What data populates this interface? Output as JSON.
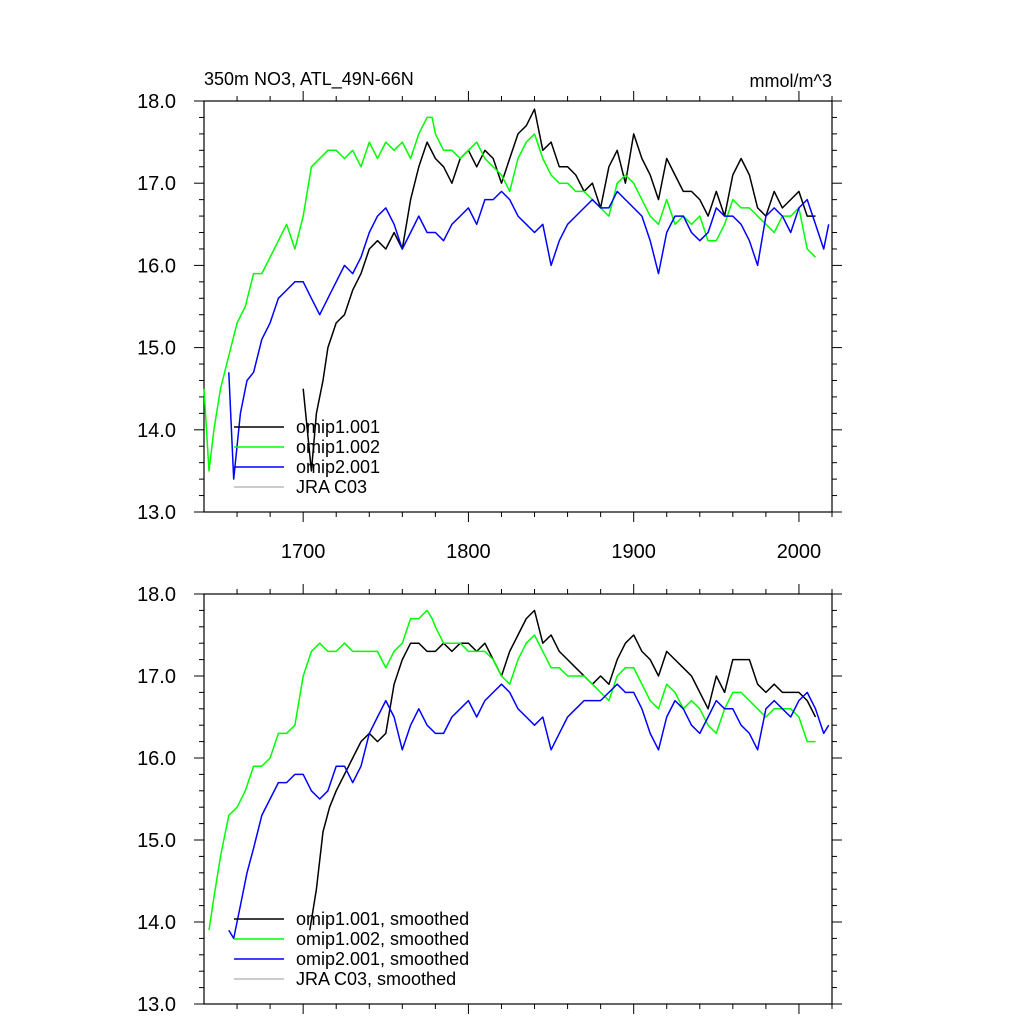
{
  "chart_data": [
    {
      "type": "line",
      "title": "350m NO3, ATL_49N-66N",
      "units": "mmol/m^3",
      "xlim": [
        1640,
        2020
      ],
      "ylim": [
        13.0,
        18.0
      ],
      "x_ticks": [
        1700,
        1800,
        1900,
        2000
      ],
      "y_ticks": [
        13.0,
        14.0,
        15.0,
        16.0,
        17.0,
        18.0
      ],
      "grid": false,
      "legend": "bottom-left",
      "series": [
        {
          "name": "omip1.001",
          "color": "#000000",
          "x": [
            1700,
            1705,
            1708,
            1712,
            1715,
            1720,
            1725,
            1730,
            1735,
            1740,
            1745,
            1750,
            1755,
            1760,
            1765,
            1770,
            1775,
            1780,
            1785,
            1790,
            1795,
            1800,
            1805,
            1810,
            1815,
            1820,
            1825,
            1830,
            1835,
            1840,
            1845,
            1850,
            1855,
            1860,
            1865,
            1870,
            1875,
            1880,
            1885,
            1890,
            1895,
            1900,
            1905,
            1910,
            1915,
            1920,
            1925,
            1930,
            1935,
            1940,
            1945,
            1950,
            1955,
            1960,
            1965,
            1970,
            1975,
            1980,
            1985,
            1990,
            1995,
            2000,
            2005,
            2010
          ],
          "y": [
            14.5,
            13.5,
            14.2,
            14.6,
            15.0,
            15.3,
            15.4,
            15.7,
            15.9,
            16.2,
            16.3,
            16.2,
            16.4,
            16.2,
            16.8,
            17.2,
            17.5,
            17.3,
            17.2,
            17.0,
            17.3,
            17.4,
            17.2,
            17.4,
            17.3,
            17.0,
            17.3,
            17.6,
            17.7,
            17.9,
            17.4,
            17.5,
            17.2,
            17.2,
            17.1,
            16.9,
            17.0,
            16.7,
            17.2,
            17.4,
            17.0,
            17.6,
            17.3,
            17.1,
            16.8,
            17.3,
            17.1,
            16.9,
            16.9,
            16.8,
            16.6,
            16.9,
            16.6,
            17.1,
            17.3,
            17.1,
            16.7,
            16.6,
            16.9,
            16.7,
            16.8,
            16.9,
            16.6,
            16.6
          ]
        },
        {
          "name": "omip1.002",
          "color": "#00ff00",
          "x": [
            1640,
            1643,
            1646,
            1650,
            1655,
            1660,
            1665,
            1670,
            1675,
            1680,
            1685,
            1690,
            1695,
            1700,
            1705,
            1710,
            1715,
            1720,
            1725,
            1730,
            1735,
            1740,
            1745,
            1750,
            1755,
            1760,
            1765,
            1770,
            1775,
            1778,
            1780,
            1785,
            1790,
            1795,
            1800,
            1805,
            1810,
            1815,
            1820,
            1825,
            1830,
            1835,
            1840,
            1845,
            1850,
            1855,
            1860,
            1865,
            1870,
            1875,
            1880,
            1885,
            1890,
            1895,
            1900,
            1905,
            1910,
            1915,
            1920,
            1925,
            1930,
            1935,
            1940,
            1945,
            1950,
            1955,
            1960,
            1965,
            1970,
            1975,
            1980,
            1985,
            1990,
            1995,
            2000,
            2005,
            2010
          ],
          "y": [
            14.5,
            13.5,
            14.0,
            14.5,
            14.9,
            15.3,
            15.5,
            15.9,
            15.9,
            16.1,
            16.3,
            16.5,
            16.2,
            16.6,
            17.2,
            17.3,
            17.4,
            17.4,
            17.3,
            17.4,
            17.2,
            17.5,
            17.3,
            17.5,
            17.4,
            17.5,
            17.3,
            17.6,
            17.8,
            17.8,
            17.6,
            17.4,
            17.4,
            17.3,
            17.4,
            17.5,
            17.3,
            17.2,
            17.1,
            16.9,
            17.3,
            17.5,
            17.6,
            17.3,
            17.1,
            17.0,
            17.0,
            16.9,
            16.9,
            16.8,
            16.7,
            16.6,
            17.0,
            17.1,
            17.0,
            16.8,
            16.6,
            16.5,
            16.8,
            16.5,
            16.6,
            16.5,
            16.6,
            16.3,
            16.3,
            16.5,
            16.8,
            16.7,
            16.7,
            16.6,
            16.5,
            16.4,
            16.6,
            16.6,
            16.7,
            16.2,
            16.1
          ]
        },
        {
          "name": "omip2.001",
          "color": "#0000ff",
          "x": [
            1655,
            1658,
            1662,
            1666,
            1670,
            1675,
            1680,
            1685,
            1690,
            1695,
            1700,
            1705,
            1710,
            1715,
            1720,
            1725,
            1730,
            1735,
            1740,
            1745,
            1750,
            1755,
            1760,
            1765,
            1770,
            1775,
            1780,
            1785,
            1790,
            1795,
            1800,
            1805,
            1810,
            1815,
            1820,
            1825,
            1830,
            1835,
            1840,
            1845,
            1850,
            1855,
            1860,
            1865,
            1870,
            1875,
            1880,
            1885,
            1890,
            1895,
            1900,
            1905,
            1910,
            1915,
            1920,
            1925,
            1930,
            1935,
            1940,
            1945,
            1950,
            1955,
            1960,
            1965,
            1970,
            1975,
            1980,
            1985,
            1990,
            1995,
            2000,
            2005,
            2010,
            2015,
            2018
          ],
          "y": [
            14.7,
            13.4,
            14.2,
            14.6,
            14.7,
            15.1,
            15.3,
            15.6,
            15.7,
            15.8,
            15.8,
            15.6,
            15.4,
            15.6,
            15.8,
            16.0,
            15.9,
            16.1,
            16.4,
            16.6,
            16.7,
            16.5,
            16.2,
            16.4,
            16.6,
            16.4,
            16.4,
            16.3,
            16.5,
            16.6,
            16.7,
            16.5,
            16.8,
            16.8,
            16.9,
            16.8,
            16.6,
            16.5,
            16.4,
            16.5,
            16.0,
            16.3,
            16.5,
            16.6,
            16.7,
            16.8,
            16.7,
            16.7,
            16.9,
            16.8,
            16.7,
            16.6,
            16.3,
            15.9,
            16.4,
            16.6,
            16.6,
            16.4,
            16.3,
            16.4,
            16.7,
            16.6,
            16.6,
            16.5,
            16.3,
            16.0,
            16.6,
            16.7,
            16.6,
            16.4,
            16.7,
            16.8,
            16.5,
            16.2,
            16.5
          ]
        },
        {
          "name": "JRA C03",
          "color": "#bbbbbb",
          "x": [],
          "y": []
        }
      ]
    },
    {
      "type": "line",
      "xlim": [
        1640,
        2020
      ],
      "ylim": [
        13.0,
        18.0
      ],
      "y_ticks": [
        13.0,
        14.0,
        15.0,
        16.0,
        17.0,
        18.0
      ],
      "grid": false,
      "legend": "bottom-left",
      "series": [
        {
          "name": "omip1.001, smoothed",
          "color": "#000000",
          "x": [
            1704,
            1708,
            1712,
            1716,
            1720,
            1725,
            1730,
            1735,
            1740,
            1745,
            1750,
            1755,
            1760,
            1765,
            1770,
            1775,
            1780,
            1785,
            1790,
            1795,
            1800,
            1805,
            1810,
            1815,
            1820,
            1825,
            1830,
            1835,
            1840,
            1845,
            1850,
            1855,
            1860,
            1865,
            1870,
            1875,
            1880,
            1885,
            1890,
            1895,
            1900,
            1905,
            1910,
            1915,
            1920,
            1925,
            1930,
            1935,
            1940,
            1945,
            1950,
            1955,
            1960,
            1965,
            1970,
            1975,
            1980,
            1985,
            1990,
            1995,
            2000,
            2005,
            2010
          ],
          "y": [
            13.9,
            14.4,
            15.1,
            15.4,
            15.6,
            15.8,
            16.0,
            16.2,
            16.3,
            16.2,
            16.3,
            16.9,
            17.2,
            17.4,
            17.4,
            17.3,
            17.3,
            17.4,
            17.3,
            17.4,
            17.4,
            17.3,
            17.4,
            17.2,
            17.0,
            17.3,
            17.5,
            17.7,
            17.8,
            17.4,
            17.5,
            17.3,
            17.2,
            17.1,
            17.0,
            16.9,
            17.0,
            16.9,
            17.2,
            17.4,
            17.5,
            17.3,
            17.2,
            17.0,
            17.3,
            17.2,
            17.1,
            17.0,
            16.8,
            16.6,
            17.0,
            16.8,
            17.2,
            17.2,
            17.2,
            16.9,
            16.8,
            16.9,
            16.8,
            16.8,
            16.8,
            16.7,
            16.5
          ]
        },
        {
          "name": "omip1.002, smoothed",
          "color": "#00ff00",
          "x": [
            1643,
            1646,
            1650,
            1655,
            1660,
            1665,
            1670,
            1675,
            1680,
            1685,
            1690,
            1695,
            1700,
            1705,
            1710,
            1715,
            1720,
            1725,
            1730,
            1735,
            1740,
            1745,
            1750,
            1755,
            1760,
            1765,
            1770,
            1775,
            1778,
            1780,
            1785,
            1790,
            1795,
            1800,
            1805,
            1810,
            1815,
            1820,
            1825,
            1830,
            1835,
            1840,
            1845,
            1850,
            1855,
            1860,
            1865,
            1870,
            1875,
            1880,
            1885,
            1890,
            1895,
            1900,
            1905,
            1910,
            1915,
            1920,
            1925,
            1930,
            1935,
            1940,
            1945,
            1950,
            1955,
            1960,
            1965,
            1970,
            1975,
            1980,
            1985,
            1990,
            1995,
            2000,
            2005,
            2010
          ],
          "y": [
            13.9,
            14.3,
            14.8,
            15.3,
            15.4,
            15.6,
            15.9,
            15.9,
            16.0,
            16.3,
            16.3,
            16.4,
            17.0,
            17.3,
            17.4,
            17.3,
            17.3,
            17.4,
            17.3,
            17.3,
            17.3,
            17.3,
            17.1,
            17.3,
            17.4,
            17.7,
            17.7,
            17.8,
            17.7,
            17.6,
            17.4,
            17.4,
            17.4,
            17.3,
            17.3,
            17.3,
            17.2,
            17.0,
            16.9,
            17.2,
            17.4,
            17.5,
            17.3,
            17.1,
            17.1,
            17.0,
            17.0,
            17.0,
            16.9,
            16.8,
            16.7,
            17.0,
            17.1,
            17.1,
            16.9,
            16.7,
            16.6,
            16.9,
            16.8,
            16.6,
            16.7,
            16.6,
            16.4,
            16.3,
            16.6,
            16.8,
            16.8,
            16.7,
            16.6,
            16.5,
            16.6,
            16.6,
            16.6,
            16.5,
            16.2,
            16.2
          ]
        },
        {
          "name": "omip2.001, smoothed",
          "color": "#0000ff",
          "x": [
            1655,
            1658,
            1662,
            1666,
            1670,
            1675,
            1680,
            1685,
            1690,
            1695,
            1700,
            1705,
            1710,
            1715,
            1720,
            1725,
            1730,
            1735,
            1740,
            1745,
            1750,
            1755,
            1760,
            1765,
            1770,
            1775,
            1780,
            1785,
            1790,
            1795,
            1800,
            1805,
            1810,
            1815,
            1820,
            1825,
            1830,
            1835,
            1840,
            1845,
            1850,
            1855,
            1860,
            1865,
            1870,
            1875,
            1880,
            1885,
            1890,
            1895,
            1900,
            1905,
            1910,
            1915,
            1920,
            1925,
            1930,
            1935,
            1940,
            1945,
            1950,
            1955,
            1960,
            1965,
            1970,
            1975,
            1980,
            1985,
            1990,
            1995,
            2000,
            2005,
            2010,
            2015,
            2018
          ],
          "y": [
            13.9,
            13.8,
            14.2,
            14.6,
            14.9,
            15.3,
            15.5,
            15.7,
            15.7,
            15.8,
            15.8,
            15.6,
            15.5,
            15.6,
            15.9,
            15.9,
            15.7,
            15.9,
            16.3,
            16.5,
            16.7,
            16.5,
            16.1,
            16.4,
            16.6,
            16.4,
            16.3,
            16.3,
            16.5,
            16.6,
            16.7,
            16.5,
            16.7,
            16.8,
            16.9,
            16.8,
            16.6,
            16.5,
            16.4,
            16.5,
            16.1,
            16.3,
            16.5,
            16.6,
            16.7,
            16.7,
            16.7,
            16.8,
            16.9,
            16.8,
            16.8,
            16.6,
            16.3,
            16.1,
            16.5,
            16.7,
            16.6,
            16.4,
            16.3,
            16.5,
            16.7,
            16.6,
            16.6,
            16.4,
            16.3,
            16.1,
            16.6,
            16.7,
            16.6,
            16.5,
            16.7,
            16.8,
            16.6,
            16.3,
            16.4
          ]
        },
        {
          "name": "JRA C03, smoothed",
          "color": "#bbbbbb",
          "x": [],
          "y": []
        }
      ]
    }
  ]
}
